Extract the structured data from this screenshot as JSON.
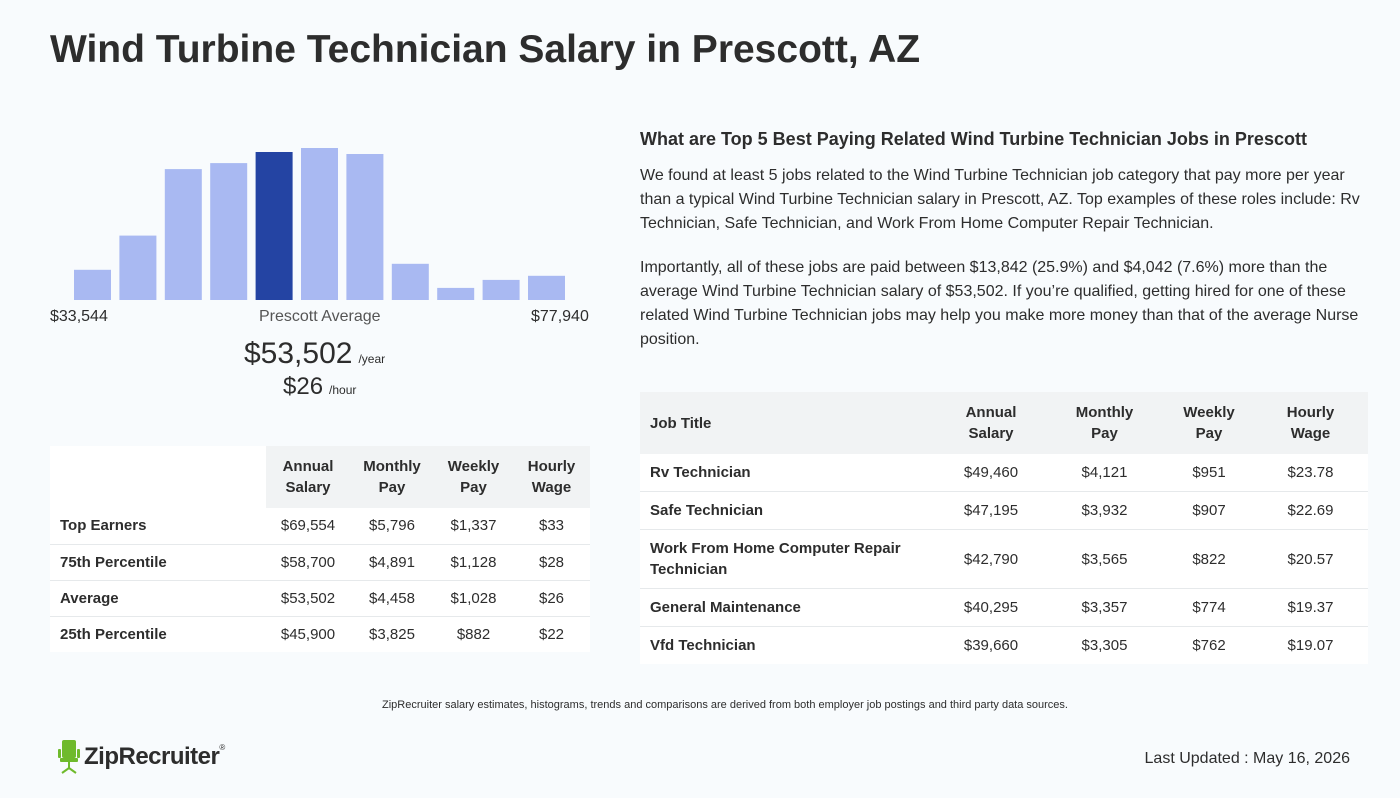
{
  "page": {
    "title": "Wind Turbine Technician Salary in Prescott, AZ"
  },
  "histogram": {
    "min_label": "$33,544",
    "max_label": "$77,940",
    "avg_label": "Prescott Average",
    "avg_year": "$53,502",
    "year_unit": "/year",
    "avg_hour": "$26",
    "hour_unit": "/hour"
  },
  "chart_data": {
    "type": "bar",
    "categories": [
      "1",
      "2",
      "3",
      "4",
      "5",
      "6",
      "7",
      "8",
      "9",
      "10",
      "11"
    ],
    "values": [
      30,
      64,
      130,
      136,
      147,
      151,
      145,
      36,
      12,
      20,
      24
    ],
    "highlight_index": 4,
    "colors": {
      "bar": "#a9b9f2",
      "highlight": "#2444a3"
    },
    "grid": false,
    "ylim": [
      0,
      151
    ]
  },
  "percentile_table": {
    "headers": [
      "",
      "Annual\nSalary",
      "Monthly\nPay",
      "Weekly\nPay",
      "Hourly\nWage"
    ],
    "rows": [
      [
        "Top Earners",
        "$69,554",
        "$5,796",
        "$1,337",
        "$33"
      ],
      [
        "75th Percentile",
        "$58,700",
        "$4,891",
        "$1,128",
        "$28"
      ],
      [
        "Average",
        "$53,502",
        "$4,458",
        "$1,028",
        "$26"
      ],
      [
        "25th Percentile",
        "$45,900",
        "$3,825",
        "$882",
        "$22"
      ]
    ]
  },
  "related": {
    "heading": "What are Top 5 Best Paying Related Wind Turbine Technician Jobs in Prescott",
    "p1": "We found at least 5 jobs related to the Wind Turbine Technician job category that pay more per year than a typical Wind Turbine Technician salary in Prescott, AZ. Top examples of these roles include: Rv Technician, Safe Technician, and Work From Home Computer Repair Technician.",
    "p2": "Importantly, all of these jobs are paid between $13,842 (25.9%) and $4,042 (7.6%) more than the average Wind Turbine Technician salary of $53,502. If you’re qualified, getting hired for one of these related Wind Turbine Technician jobs may help you make more money than that of the average Nurse position."
  },
  "jobs_table": {
    "headers": [
      "Job Title",
      "Annual\nSalary",
      "Monthly\nPay",
      "Weekly\nPay",
      "Hourly\nWage"
    ],
    "rows": [
      [
        "Rv Technician",
        "$49,460",
        "$4,121",
        "$951",
        "$23.78"
      ],
      [
        "Safe Technician",
        "$47,195",
        "$3,932",
        "$907",
        "$22.69"
      ],
      [
        "Work From Home Computer Repair Technician",
        "$42,790",
        "$3,565",
        "$822",
        "$20.57"
      ],
      [
        "General Maintenance",
        "$40,295",
        "$3,357",
        "$774",
        "$19.37"
      ],
      [
        "Vfd Technician",
        "$39,660",
        "$3,305",
        "$762",
        "$19.07"
      ]
    ]
  },
  "footer": {
    "note": "ZipRecruiter salary estimates, histograms, trends and comparisons are derived from both employer job postings and third party data sources.",
    "logo_text": "ZipRecruiter",
    "logo_mark": "®",
    "updated": "Last Updated : May 16, 2026",
    "logo_color": "#6fba2c"
  }
}
